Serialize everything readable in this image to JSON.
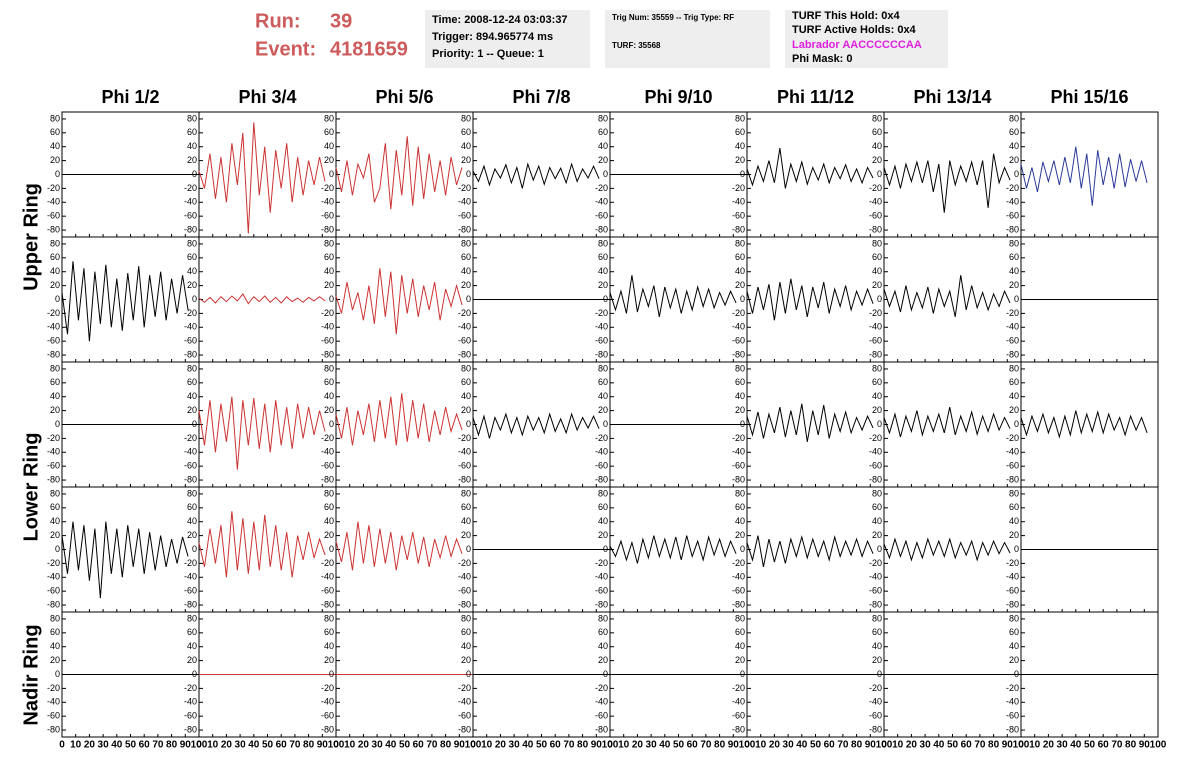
{
  "header": {
    "run_label": "Run:",
    "run": "39",
    "event_label": "Event:",
    "event": "4181659",
    "box1": [
      "Time: 2008-12-24 03:03:37",
      "Trigger: 894.965774 ms",
      "Priority: 1 -- Queue: 1"
    ],
    "box2": [
      "Trig Num: 35559 -- Trig Type: RF",
      "TURF: 35568"
    ],
    "box3": [
      "TURF This Hold: 0x4",
      "TURF Active Holds: 0x4",
      "Labrador AACCCCCCAA",
      "Phi Mask: 0"
    ]
  },
  "columns": [
    "Phi 1/2",
    "Phi 3/4",
    "Phi 5/6",
    "Phi 7/8",
    "Phi 9/10",
    "Phi 11/12",
    "Phi 13/14",
    "Phi 15/16"
  ],
  "row_labels": [
    "Upper Ring",
    "Lower Ring",
    "Nadir Ring"
  ],
  "axes": {
    "ylim": [
      -90,
      90
    ],
    "yticks": [
      -80,
      -60,
      -40,
      -20,
      0,
      20,
      40,
      60,
      80
    ],
    "xlim": [
      0,
      100
    ],
    "xticks": [
      0,
      10,
      20,
      30,
      40,
      50,
      60,
      70,
      80,
      90,
      100
    ]
  },
  "sample_x": [
    0,
    4,
    8,
    12,
    16,
    20,
    24,
    28,
    32,
    36,
    40,
    44,
    48,
    52,
    56,
    60,
    64,
    68,
    72,
    76,
    80,
    84,
    88,
    92
  ],
  "panels": [
    [
      {
        "color": "#000000",
        "x": [
          0,
          100
        ],
        "values": [
          0,
          0
        ]
      },
      {
        "color": "#cc3333",
        "values": [
          5,
          -20,
          30,
          -35,
          25,
          -40,
          45,
          -15,
          60,
          -85,
          75,
          -30,
          40,
          -55,
          35,
          -20,
          45,
          -40,
          25,
          -30,
          20,
          -15,
          25,
          -10
        ]
      },
      {
        "color": "#cc3333",
        "values": [
          10,
          -25,
          20,
          -30,
          15,
          -5,
          30,
          -40,
          -20,
          45,
          -50,
          35,
          -30,
          55,
          -45,
          40,
          -35,
          30,
          -25,
          20,
          -30,
          25,
          -15,
          10
        ]
      },
      {
        "color": "#000000",
        "values": [
          5,
          -10,
          12,
          -15,
          8,
          -5,
          14,
          -12,
          10,
          -20,
          15,
          -8,
          12,
          -14,
          10,
          -6,
          9,
          -12,
          15,
          -10,
          8,
          -5,
          12,
          -6
        ]
      },
      {
        "color": "#000000",
        "x": [
          0,
          100
        ],
        "values": [
          0,
          0
        ]
      },
      {
        "color": "#000000",
        "values": [
          8,
          -15,
          12,
          -10,
          20,
          -12,
          38,
          -20,
          15,
          -10,
          18,
          -14,
          10,
          -8,
          15,
          -12,
          10,
          -6,
          14,
          -10,
          8,
          -12,
          10,
          -5
        ]
      },
      {
        "color": "#000000",
        "values": [
          10,
          -15,
          12,
          -20,
          15,
          -10,
          18,
          -12,
          20,
          -25,
          15,
          -55,
          20,
          -15,
          12,
          -10,
          18,
          -15,
          20,
          -48,
          30,
          -12,
          10,
          -8
        ]
      },
      {
        "color": "#2a3a9a",
        "values": [
          15,
          -20,
          10,
          -25,
          18,
          -10,
          20,
          -15,
          25,
          -12,
          40,
          -20,
          30,
          -45,
          35,
          -15,
          25,
          -20,
          30,
          -18,
          22,
          -10,
          20,
          -12
        ]
      }
    ],
    [
      {
        "color": "#000000",
        "values": [
          10,
          -50,
          55,
          -30,
          45,
          -60,
          40,
          -35,
          50,
          -40,
          30,
          -45,
          38,
          -30,
          48,
          -40,
          35,
          -25,
          40,
          -30,
          30,
          -20,
          35,
          -15
        ]
      },
      {
        "color": "#cc3333",
        "values": [
          2,
          -4,
          3,
          -5,
          4,
          -3,
          5,
          -2,
          8,
          -6,
          4,
          -3,
          5,
          -4,
          3,
          -5,
          4,
          -3,
          2,
          -4,
          3,
          -2,
          4,
          -2
        ]
      },
      {
        "color": "#cc3333",
        "values": [
          5,
          -20,
          25,
          -15,
          10,
          -30,
          20,
          -35,
          45,
          -25,
          40,
          -50,
          35,
          -20,
          30,
          -25,
          20,
          -15,
          25,
          -30,
          15,
          -10,
          20,
          -8
        ]
      },
      {
        "color": "#000000",
        "x": [
          0,
          100
        ],
        "values": [
          0,
          0
        ]
      },
      {
        "color": "#000000",
        "values": [
          10,
          -15,
          12,
          -20,
          35,
          -18,
          15,
          -10,
          20,
          -25,
          18,
          -12,
          15,
          -20,
          12,
          -15,
          18,
          -10,
          15,
          -12,
          10,
          -8,
          12,
          -5
        ]
      },
      {
        "color": "#000000",
        "values": [
          12,
          -20,
          18,
          -15,
          22,
          -30,
          25,
          -20,
          30,
          -15,
          20,
          -25,
          18,
          -12,
          25,
          -20,
          15,
          -10,
          20,
          -15,
          12,
          -8,
          15,
          -6
        ]
      },
      {
        "color": "#000000",
        "values": [
          15,
          -10,
          12,
          -18,
          20,
          -15,
          10,
          -12,
          18,
          -20,
          15,
          -10,
          12,
          -25,
          35,
          -15,
          20,
          -12,
          10,
          -15,
          8,
          -10,
          12,
          -5
        ]
      },
      {
        "color": "#000000",
        "x": [
          0,
          100
        ],
        "values": [
          0,
          0
        ]
      }
    ],
    [
      {
        "color": "#000000",
        "x": [
          0,
          100
        ],
        "values": [
          0,
          0
        ]
      },
      {
        "color": "#cc3333",
        "values": [
          20,
          -30,
          35,
          -40,
          30,
          -25,
          40,
          -65,
          35,
          -30,
          38,
          -35,
          30,
          -40,
          35,
          -30,
          25,
          -35,
          30,
          -20,
          25,
          -15,
          20,
          -10
        ]
      },
      {
        "color": "#cc3333",
        "values": [
          15,
          -20,
          25,
          -30,
          20,
          -15,
          30,
          -25,
          35,
          -20,
          40,
          -30,
          45,
          -25,
          35,
          -20,
          30,
          -25,
          20,
          -15,
          25,
          -10,
          15,
          -8
        ]
      },
      {
        "color": "#000000",
        "values": [
          10,
          -15,
          12,
          -20,
          10,
          -8,
          15,
          -12,
          10,
          -15,
          12,
          -8,
          10,
          -12,
          15,
          -10,
          8,
          -12,
          15,
          -8,
          10,
          -5,
          12,
          -6
        ]
      },
      {
        "color": "#000000",
        "x": [
          0,
          100
        ],
        "values": [
          0,
          0
        ]
      },
      {
        "color": "#000000",
        "values": [
          12,
          -15,
          18,
          -20,
          15,
          -12,
          25,
          -18,
          20,
          -15,
          30,
          -25,
          20,
          -15,
          28,
          -20,
          15,
          -10,
          18,
          -12,
          10,
          -8,
          12,
          -5
        ]
      },
      {
        "color": "#000000",
        "values": [
          10,
          -12,
          15,
          -18,
          12,
          -10,
          20,
          -15,
          12,
          -10,
          15,
          -12,
          25,
          -15,
          12,
          -10,
          18,
          -14,
          12,
          -10,
          15,
          -8,
          10,
          -6
        ]
      },
      {
        "color": "#000000",
        "values": [
          10,
          -15,
          12,
          -10,
          15,
          -12,
          10,
          -18,
          12,
          -15,
          20,
          -12,
          15,
          -10,
          18,
          -12,
          15,
          -8,
          10,
          -15,
          12,
          -8,
          10,
          -12
        ]
      }
    ],
    [
      {
        "color": "#000000",
        "values": [
          20,
          -35,
          40,
          -30,
          35,
          -45,
          30,
          -70,
          40,
          -35,
          30,
          -40,
          35,
          -25,
          30,
          -35,
          25,
          -30,
          20,
          -25,
          15,
          -20,
          18,
          -10
        ]
      },
      {
        "color": "#cc3333",
        "values": [
          10,
          -25,
          30,
          -20,
          35,
          -40,
          55,
          -30,
          45,
          -35,
          40,
          -30,
          50,
          -25,
          35,
          -30,
          25,
          -40,
          20,
          -15,
          25,
          -12,
          15,
          -8
        ]
      },
      {
        "color": "#cc3333",
        "values": [
          12,
          -18,
          25,
          -30,
          40,
          -20,
          35,
          -25,
          30,
          -20,
          25,
          -30,
          20,
          -15,
          25,
          -20,
          18,
          -25,
          15,
          -12,
          20,
          -10,
          15,
          -6
        ]
      },
      {
        "color": "#000000",
        "x": [
          0,
          100
        ],
        "values": [
          0,
          0
        ]
      },
      {
        "color": "#000000",
        "values": [
          5,
          -10,
          12,
          -15,
          10,
          -20,
          15,
          -12,
          20,
          -10,
          15,
          -12,
          18,
          -15,
          20,
          -10,
          12,
          -15,
          18,
          -8,
          15,
          -10,
          12,
          -6
        ]
      },
      {
        "color": "#000000",
        "values": [
          10,
          -15,
          20,
          -25,
          15,
          -18,
          12,
          -20,
          15,
          -10,
          18,
          -12,
          15,
          -10,
          12,
          -15,
          18,
          -10,
          12,
          -8,
          15,
          -10,
          12,
          -6
        ]
      },
      {
        "color": "#000000",
        "values": [
          8,
          -12,
          15,
          -10,
          12,
          -15,
          10,
          -12,
          15,
          -8,
          12,
          -10,
          15,
          -12,
          10,
          -8,
          12,
          -15,
          10,
          -8,
          12,
          -6,
          10,
          -5
        ]
      },
      {
        "color": "#000000",
        "x": [
          0,
          100
        ],
        "values": [
          0,
          0
        ]
      }
    ],
    [
      {
        "color": "#000000",
        "x": [
          0,
          100
        ],
        "values": [
          0,
          0
        ]
      },
      {
        "color": "#cc3333",
        "x": [
          0,
          100
        ],
        "values": [
          0,
          0
        ]
      },
      {
        "color": "#cc3333",
        "x": [
          0,
          100
        ],
        "values": [
          0,
          0
        ]
      },
      {
        "color": "#000000",
        "x": [
          0,
          100
        ],
        "values": [
          0,
          0
        ]
      },
      {
        "color": "#000000",
        "x": [
          0,
          100
        ],
        "values": [
          0,
          0
        ]
      },
      {
        "color": "#000000",
        "x": [
          0,
          100
        ],
        "values": [
          0,
          0
        ]
      },
      {
        "color": "#000000",
        "x": [
          0,
          100
        ],
        "values": [
          0,
          0
        ]
      },
      {
        "color": "#000000",
        "x": [
          0,
          100
        ],
        "values": [
          0,
          0
        ]
      }
    ]
  ]
}
